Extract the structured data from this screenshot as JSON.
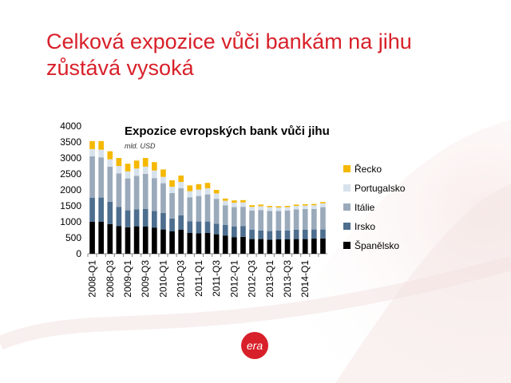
{
  "slide": {
    "title_line1": "Celková expozice vůči bankám na jihu",
    "title_line2": "zůstává vysoká"
  },
  "logo": {
    "text": "era",
    "color": "#d8202a"
  },
  "colors": {
    "title": "#d8202a"
  },
  "chart_data": {
    "type": "bar",
    "stacked": true,
    "title": "Expozice evropských bank vůči jihu",
    "subtitle": "mld. USD",
    "xlabel": "",
    "ylabel": "",
    "ylim": [
      0,
      4000
    ],
    "yticks": [
      0,
      500,
      1000,
      1500,
      2000,
      2500,
      3000,
      3500,
      4000
    ],
    "grid": false,
    "legend_position": "right",
    "categories": [
      "2008-Q1",
      "2008-Q2",
      "2008-Q3",
      "2008-Q4",
      "2009-Q1",
      "2009-Q2",
      "2009-Q3",
      "2009-Q4",
      "2010-Q1",
      "2010-Q2",
      "2010-Q3",
      "2010-Q4",
      "2011-Q1",
      "2011-Q2",
      "2011-Q3",
      "2011-Q4",
      "2012-Q1",
      "2012-Q2",
      "2012-Q3",
      "2012-Q4",
      "2013-Q1",
      "2013-Q2",
      "2013-Q3",
      "2013-Q4",
      "2014-Q1",
      "2014-Q2",
      "2014-Q3"
    ],
    "tick_labels": [
      "2008-Q1",
      "",
      "2008-Q3",
      "",
      "2009-Q1",
      "",
      "2009-Q3",
      "",
      "2010-Q1",
      "",
      "2010-Q3",
      "",
      "2011-Q1",
      "",
      "2011-Q3",
      "",
      "2012-Q1",
      "",
      "2012-Q3",
      "",
      "2013-Q1",
      "",
      "2013-Q3",
      "",
      "2014-Q1",
      "",
      ""
    ],
    "series": [
      {
        "name": "Španělsko",
        "color": "#000000",
        "values": [
          1000,
          1000,
          930,
          870,
          830,
          860,
          850,
          820,
          760,
          700,
          750,
          650,
          640,
          650,
          610,
          570,
          520,
          530,
          460,
          460,
          440,
          450,
          450,
          460,
          460,
          480,
          480
        ]
      },
      {
        "name": "Irsko",
        "color": "#4d6e8e",
        "values": [
          750,
          760,
          700,
          600,
          530,
          530,
          550,
          520,
          520,
          400,
          450,
          370,
          370,
          360,
          330,
          330,
          330,
          340,
          290,
          270,
          270,
          280,
          280,
          290,
          290,
          280,
          280
        ]
      },
      {
        "name": "Itálie",
        "color": "#9aaabb",
        "values": [
          1300,
          1260,
          1100,
          1050,
          1000,
          1050,
          1100,
          1030,
          930,
          800,
          850,
          750,
          800,
          850,
          780,
          620,
          610,
          600,
          600,
          640,
          630,
          610,
          620,
          640,
          650,
          640,
          700
        ]
      },
      {
        "name": "Portugalsko",
        "color": "#d8e2ec",
        "values": [
          230,
          240,
          230,
          230,
          220,
          230,
          230,
          240,
          200,
          200,
          200,
          190,
          200,
          190,
          170,
          140,
          140,
          140,
          120,
          120,
          120,
          110,
          110,
          110,
          110,
          120,
          120
        ]
      },
      {
        "name": "Řecko",
        "color": "#f5b800",
        "values": [
          250,
          270,
          250,
          250,
          240,
          250,
          270,
          260,
          230,
          200,
          200,
          180,
          170,
          170,
          110,
          70,
          70,
          70,
          50,
          50,
          40,
          40,
          40,
          40,
          40,
          40,
          40
        ]
      }
    ]
  }
}
